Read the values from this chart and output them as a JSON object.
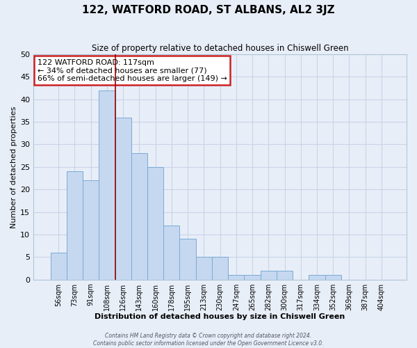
{
  "title": "122, WATFORD ROAD, ST ALBANS, AL2 3JZ",
  "subtitle": "Size of property relative to detached houses in Chiswell Green",
  "xlabel": "Distribution of detached houses by size in Chiswell Green",
  "ylabel": "Number of detached properties",
  "bar_labels": [
    "56sqm",
    "73sqm",
    "91sqm",
    "108sqm",
    "126sqm",
    "143sqm",
    "160sqm",
    "178sqm",
    "195sqm",
    "213sqm",
    "230sqm",
    "247sqm",
    "265sqm",
    "282sqm",
    "300sqm",
    "317sqm",
    "334sqm",
    "352sqm",
    "369sqm",
    "387sqm",
    "404sqm"
  ],
  "bar_values": [
    6,
    24,
    22,
    42,
    36,
    28,
    25,
    12,
    9,
    5,
    5,
    1,
    1,
    2,
    2,
    0,
    1,
    1,
    0,
    0,
    0
  ],
  "bar_color": "#c5d8f0",
  "bar_edgecolor": "#7aaad4",
  "vline_x_index": 3.5,
  "vline_color": "#990000",
  "ylim": [
    0,
    50
  ],
  "yticks": [
    0,
    5,
    10,
    15,
    20,
    25,
    30,
    35,
    40,
    45,
    50
  ],
  "grid_color": "#c8d4e8",
  "bg_color": "#e8eef8",
  "plot_bg_color": "#e8eef8",
  "annotation_title": "122 WATFORD ROAD: 117sqm",
  "annotation_line2": "← 34% of detached houses are smaller (77)",
  "annotation_line3": "66% of semi-detached houses are larger (149) →",
  "annotation_box_color": "#ffffff",
  "annotation_box_edgecolor": "#cc2222",
  "footer_line1": "Contains HM Land Registry data © Crown copyright and database right 2024.",
  "footer_line2": "Contains public sector information licensed under the Open Government Licence v3.0."
}
